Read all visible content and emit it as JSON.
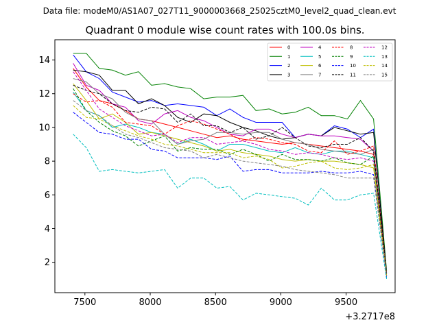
{
  "chart_data": {
    "type": "line",
    "suptitle": "Data file: modeM0/AS1A07_027T11_9000003668_25025cztM0_level2_quad_clean.evt",
    "title": "Quadrant 0 module wise count rates with 100.0s bins.",
    "xlabel": "",
    "ylabel": "",
    "x_offset_label": "+3.2717e8",
    "xlim": [
      7270,
      9875
    ],
    "ylim": [
      0.2,
      15.2
    ],
    "x_ticks": [
      7500,
      8000,
      8500,
      9000,
      9500
    ],
    "y_ticks": [
      2,
      4,
      6,
      8,
      10,
      12,
      14
    ],
    "x": [
      7410,
      7510,
      7610,
      7710,
      7810,
      7910,
      8010,
      8110,
      8210,
      8310,
      8410,
      8510,
      8610,
      8710,
      8810,
      8910,
      9010,
      9110,
      9210,
      9310,
      9410,
      9510,
      9610,
      9710,
      9810
    ],
    "legend_position": "top-right",
    "series": [
      {
        "name": "0",
        "color": "#ff0000",
        "dash": "solid",
        "values": [
          13.5,
          12.4,
          11.6,
          11.4,
          11.0,
          10.5,
          10.4,
          10.2,
          10.0,
          9.8,
          9.6,
          9.4,
          9.5,
          9.3,
          9.2,
          9.1,
          9.0,
          9.1,
          9.0,
          8.9,
          8.8,
          8.7,
          8.6,
          8.4,
          1.3
        ]
      },
      {
        "name": "1",
        "color": "#008000",
        "dash": "solid",
        "values": [
          14.4,
          14.4,
          13.5,
          13.4,
          13.1,
          13.3,
          12.5,
          12.6,
          12.4,
          12.3,
          11.7,
          11.8,
          11.8,
          11.9,
          11.0,
          11.1,
          10.8,
          10.9,
          11.2,
          10.7,
          10.7,
          10.5,
          11.6,
          10.5,
          1.5
        ]
      },
      {
        "name": "2",
        "color": "#0000ff",
        "dash": "solid",
        "values": [
          14.3,
          13.3,
          12.9,
          12.1,
          11.8,
          11.5,
          11.6,
          11.3,
          11.4,
          11.3,
          11.2,
          10.7,
          11.1,
          10.6,
          10.3,
          10.3,
          10.3,
          9.4,
          9.6,
          9.5,
          10.1,
          9.9,
          9.4,
          9.9,
          1.2
        ]
      },
      {
        "name": "3",
        "color": "#000000",
        "dash": "solid",
        "values": [
          13.4,
          13.3,
          13.1,
          12.2,
          12.2,
          11.4,
          11.7,
          11.3,
          10.6,
          10.3,
          10.8,
          10.7,
          10.3,
          10.0,
          9.8,
          9.5,
          9.3,
          9.4,
          9.6,
          9.5,
          10.0,
          9.8,
          9.6,
          9.7,
          1.4
        ]
      },
      {
        "name": "4",
        "color": "#bf00bf",
        "dash": "solid",
        "values": [
          13.8,
          12.5,
          12.2,
          11.4,
          11.2,
          10.4,
          10.2,
          10.8,
          11.0,
          10.6,
          10.4,
          10.0,
          9.6,
          9.5,
          9.9,
          9.9,
          9.6,
          9.4,
          9.6,
          9.5,
          9.5,
          9.4,
          9.3,
          8.6,
          1.3
        ]
      },
      {
        "name": "5",
        "color": "#00bfbf",
        "dash": "solid",
        "values": [
          12.1,
          11.0,
          10.7,
          10.0,
          10.2,
          10.0,
          9.7,
          9.6,
          9.0,
          9.3,
          9.0,
          8.6,
          9.0,
          9.0,
          8.8,
          8.6,
          8.5,
          8.8,
          8.5,
          8.4,
          8.6,
          8.6,
          8.4,
          8.2,
          1.2
        ]
      },
      {
        "name": "6",
        "color": "#bfbf00",
        "dash": "solid",
        "values": [
          12.6,
          11.6,
          10.5,
          10.8,
          10.3,
          9.6,
          9.7,
          9.5,
          9.3,
          9.1,
          8.9,
          8.6,
          8.7,
          8.5,
          8.4,
          8.3,
          8.1,
          8.0,
          8.1,
          8.0,
          8.0,
          7.9,
          7.8,
          7.6,
          1.2
        ]
      },
      {
        "name": "7",
        "color": "#808080",
        "dash": "solid",
        "values": [
          12.9,
          12.7,
          12.0,
          11.7,
          10.9,
          10.5,
          10.4,
          9.6,
          9.0,
          9.2,
          9.3,
          9.7,
          9.7,
          9.6,
          9.7,
          9.7,
          9.3,
          9.1,
          9.0,
          8.7,
          8.6,
          8.5,
          8.4,
          8.7,
          1.3
        ]
      },
      {
        "name": "8",
        "color": "#ff0000",
        "dash": "dashed",
        "values": [
          12.0,
          11.5,
          11.6,
          11.2,
          10.3,
          10.2,
          10.1,
          9.6,
          10.1,
          10.4,
          10.2,
          9.9,
          9.6,
          9.2,
          9.4,
          9.3,
          9.1,
          9.0,
          8.6,
          8.5,
          9.2,
          8.4,
          8.6,
          8.9,
          1.2
        ]
      },
      {
        "name": "9",
        "color": "#008000",
        "dash": "dashed",
        "values": [
          12.3,
          11.0,
          10.3,
          9.8,
          9.5,
          8.9,
          9.2,
          9.5,
          8.6,
          8.8,
          8.7,
          8.7,
          8.4,
          8.7,
          8.4,
          8.0,
          8.4,
          8.1,
          8.1,
          8.0,
          8.2,
          7.9,
          7.8,
          8.3,
          1.2
        ]
      },
      {
        "name": "10",
        "color": "#0000ff",
        "dash": "dashed",
        "values": [
          10.9,
          10.3,
          9.7,
          9.6,
          9.3,
          9.3,
          8.7,
          8.6,
          8.2,
          8.2,
          8.2,
          8.1,
          8.3,
          7.4,
          7.5,
          7.5,
          7.3,
          7.3,
          7.3,
          7.4,
          7.3,
          7.3,
          7.4,
          7.2,
          1.1
        ]
      },
      {
        "name": "11",
        "color": "#000000",
        "dash": "dashed",
        "values": [
          12.5,
          12.2,
          12.0,
          11.4,
          11.0,
          10.9,
          11.2,
          11.1,
          10.3,
          10.8,
          10.1,
          10.1,
          9.7,
          10.0,
          9.3,
          9.5,
          10.0,
          9.4,
          8.9,
          8.8,
          9.0,
          9.0,
          9.4,
          8.6,
          1.3
        ]
      },
      {
        "name": "12",
        "color": "#bf00bf",
        "dash": "dashed",
        "values": [
          13.3,
          12.2,
          11.1,
          10.6,
          10.1,
          9.8,
          9.5,
          9.6,
          9.1,
          9.4,
          9.4,
          9.0,
          9.1,
          9.2,
          9.0,
          8.7,
          8.6,
          8.4,
          8.5,
          8.4,
          8.2,
          8.1,
          8.2,
          8.0,
          1.2
        ]
      },
      {
        "name": "13",
        "color": "#00bfbf",
        "dash": "dashed",
        "values": [
          9.6,
          8.8,
          7.4,
          7.5,
          7.4,
          7.3,
          7.4,
          7.5,
          6.4,
          7.0,
          7.0,
          6.4,
          6.5,
          5.7,
          6.1,
          6.0,
          5.9,
          5.8,
          5.4,
          6.4,
          5.7,
          5.7,
          6.0,
          6.1,
          1.0
        ]
      },
      {
        "name": "14",
        "color": "#bfbf00",
        "dash": "dashed",
        "values": [
          11.3,
          10.6,
          10.5,
          10.1,
          9.8,
          9.5,
          9.3,
          9.0,
          8.9,
          8.7,
          8.5,
          8.5,
          8.5,
          8.2,
          8.3,
          8.1,
          7.6,
          7.7,
          7.9,
          8.0,
          7.6,
          7.5,
          7.6,
          7.8,
          1.2
        ]
      },
      {
        "name": "15",
        "color": "#808080",
        "dash": "dashed",
        "values": [
          11.6,
          11.0,
          10.7,
          10.1,
          9.6,
          9.4,
          9.1,
          8.8,
          8.7,
          8.6,
          8.2,
          8.4,
          8.2,
          8.0,
          7.9,
          7.8,
          7.7,
          7.5,
          7.4,
          7.3,
          7.2,
          7.0,
          7.0,
          7.0,
          1.2
        ]
      }
    ]
  }
}
